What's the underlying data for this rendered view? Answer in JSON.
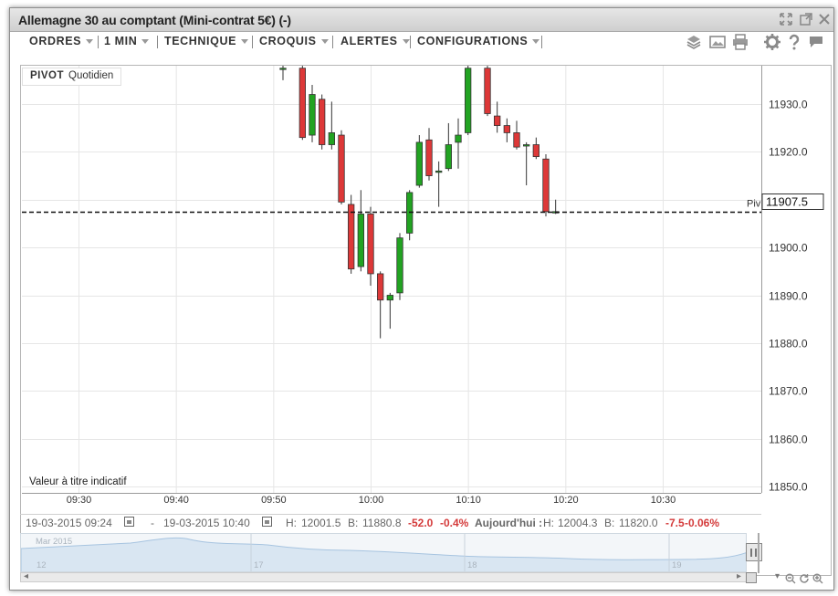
{
  "window": {
    "title": "Allemagne 30 au comptant (Mini-contrat 5€) (-)"
  },
  "menu": {
    "items": [
      "ORDRES",
      "1 MIN",
      "TECHNIQUE",
      "CROQUIS",
      "ALERTES",
      "CONFIGURATIONS"
    ]
  },
  "toolbar_icons": [
    "layers-icon",
    "image-icon",
    "print-icon",
    "gear-icon",
    "help-icon",
    "flag-icon"
  ],
  "indicator": {
    "name": "PIVOT",
    "period": "Quotidien"
  },
  "disclaimer": "Valeur à titre indicatif",
  "pivot": {
    "short_label": "Piv",
    "value_text": "11907.5",
    "value": 11907.5
  },
  "footer": {
    "from": "19-03-2015 09:24",
    "dash": "-",
    "to": "19-03-2015 10:40",
    "high_label": "H:",
    "high": "12001.5",
    "low_label": "B:",
    "low": "11880.8",
    "change": "-52.0",
    "change_pct": "-0.4%",
    "today_label": "Aujourd'hui :",
    "today_high_label": "H:",
    "today_high": "12004.3",
    "today_low_label": "B:",
    "today_low": "11820.0",
    "today_change": "-7.5",
    "today_change_pct": "-0.06%"
  },
  "overview": {
    "month_label": "Mar 2015",
    "day_labels": [
      "12",
      "17",
      "18",
      "19"
    ]
  },
  "colors": {
    "up": "#22a322",
    "down": "#dd3838",
    "grid": "#e6e6e6"
  },
  "chart_data": {
    "type": "candlestick",
    "title": "",
    "xlabel": "",
    "ylabel": "",
    "ylim": [
      11847,
      11937
    ],
    "xlim": [
      "09:25",
      "10:39"
    ],
    "x_ticks": [
      "09:30",
      "09:40",
      "09:50",
      "10:00",
      "10:10",
      "10:20",
      "10:30"
    ],
    "y_ticks": [
      "11930.0",
      "11920.0",
      "11910.0",
      "11900.0",
      "11890.0",
      "11880.0",
      "11870.0",
      "11860.0",
      "11850.0"
    ],
    "reference_line": {
      "label": "Piv",
      "value": 11907.5,
      "style": "dashed"
    },
    "grid": true,
    "candles": [
      {
        "time": "09:51",
        "open": 11937.5,
        "high": 11938.5,
        "low": 11935.0,
        "close": 11937.5
      },
      {
        "time": "09:53",
        "open": 11937.5,
        "high": 11938.0,
        "low": 11922.5,
        "close": 11923.0
      },
      {
        "time": "09:54",
        "open": 11923.5,
        "high": 11934.0,
        "low": 11922.0,
        "close": 11932.0
      },
      {
        "time": "09:55",
        "open": 11931.0,
        "high": 11932.0,
        "low": 11920.5,
        "close": 11921.5
      },
      {
        "time": "09:56",
        "open": 11921.5,
        "high": 11930.5,
        "low": 11920.5,
        "close": 11924.0
      },
      {
        "time": "09:57",
        "open": 11923.5,
        "high": 11924.5,
        "low": 11909.0,
        "close": 11909.5
      },
      {
        "time": "09:58",
        "open": 11909.0,
        "high": 11911.0,
        "low": 11894.5,
        "close": 11895.5
      },
      {
        "time": "09:59",
        "open": 11896.0,
        "high": 11912.0,
        "low": 11895.0,
        "close": 11907.0
      },
      {
        "time": "10:00",
        "open": 11907.0,
        "high": 11908.5,
        "low": 11892.0,
        "close": 11894.5
      },
      {
        "time": "10:01",
        "open": 11894.5,
        "high": 11895.0,
        "low": 11881.0,
        "close": 11889.0
      },
      {
        "time": "10:02",
        "open": 11889.0,
        "high": 11890.5,
        "low": 11883.0,
        "close": 11890.0
      },
      {
        "time": "10:03",
        "open": 11890.5,
        "high": 11903.0,
        "low": 11889.0,
        "close": 11902.0
      },
      {
        "time": "10:04",
        "open": 11903.0,
        "high": 11912.0,
        "low": 11901.5,
        "close": 11911.5
      },
      {
        "time": "10:05",
        "open": 11913.0,
        "high": 11923.5,
        "low": 11912.5,
        "close": 11922.0
      },
      {
        "time": "10:06",
        "open": 11922.5,
        "high": 11925.0,
        "low": 11914.0,
        "close": 11915.0
      },
      {
        "time": "10:07",
        "open": 11916.0,
        "high": 11918.0,
        "low": 11908.5,
        "close": 11916.0
      },
      {
        "time": "10:08",
        "open": 11916.5,
        "high": 11926.0,
        "low": 11916.0,
        "close": 11921.5
      },
      {
        "time": "10:09",
        "open": 11922.0,
        "high": 11927.0,
        "low": 11916.5,
        "close": 11923.5
      },
      {
        "time": "10:10",
        "open": 11924.0,
        "high": 11938.0,
        "low": 11923.5,
        "close": 11937.5
      },
      {
        "time": "10:12",
        "open": 11937.5,
        "high": 11938.0,
        "low": 11927.5,
        "close": 11928.0
      },
      {
        "time": "10:13",
        "open": 11927.5,
        "high": 11930.5,
        "low": 11924.0,
        "close": 11925.5
      },
      {
        "time": "10:14",
        "open": 11925.5,
        "high": 11927.0,
        "low": 11922.0,
        "close": 11924.0
      },
      {
        "time": "10:15",
        "open": 11924.0,
        "high": 11926.5,
        "low": 11920.5,
        "close": 11921.0
      },
      {
        "time": "10:16",
        "open": 11921.5,
        "high": 11922.0,
        "low": 11913.0,
        "close": 11921.5
      },
      {
        "time": "10:17",
        "open": 11921.5,
        "high": 11923.0,
        "low": 11918.5,
        "close": 11919.0
      },
      {
        "time": "10:18",
        "open": 11918.5,
        "high": 11919.5,
        "low": 11906.5,
        "close": 11907.5
      },
      {
        "time": "10:19",
        "open": 11907.5,
        "high": 11910.0,
        "low": 11907.0,
        "close": 11907.5
      }
    ]
  }
}
